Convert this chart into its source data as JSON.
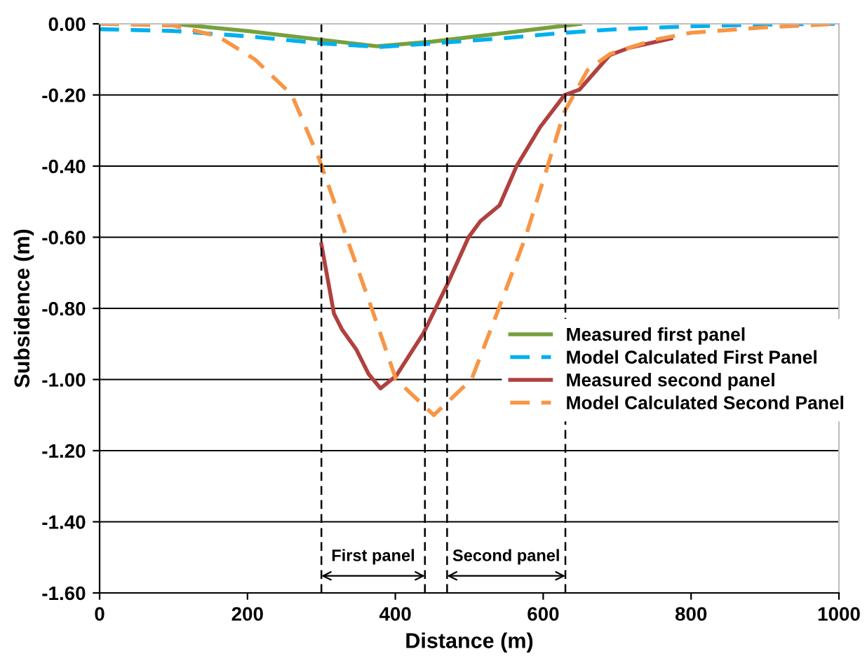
{
  "chart_data": {
    "type": "line",
    "xlabel": "Distance (m)",
    "ylabel": "Subsidence (m)",
    "xlim": [
      0,
      1000
    ],
    "xticks": [
      0,
      200,
      400,
      600,
      800,
      1000
    ],
    "ylim": [
      -1.6,
      0
    ],
    "yticks": [
      {
        "value": -1.6,
        "label": "-1.60"
      },
      {
        "value": -1.4,
        "label": "-1.40"
      },
      {
        "value": -1.2,
        "label": "-1.20"
      },
      {
        "value": -1.0,
        "label": "-1.00"
      },
      {
        "value": -0.8,
        "label": "-0.80"
      },
      {
        "value": -0.6,
        "label": "-0.60"
      },
      {
        "value": -0.4,
        "label": "-0.40"
      },
      {
        "value": -0.2,
        "label": "-0.20"
      },
      {
        "value": 0,
        "label": "0.00"
      }
    ],
    "grid": "y",
    "legend": "bottom right",
    "marker": "none",
    "series": [
      {
        "name": "Measured first panel",
        "color": "#77a03c",
        "line_style": "solid",
        "x": [
          100,
          200,
          300,
          375,
          450,
          550,
          650
        ],
        "values": [
          0,
          -0.02,
          -0.045,
          -0.063,
          -0.05,
          -0.025,
          0
        ]
      },
      {
        "name": "Model Calculated First Panel",
        "color": "#00b0f0",
        "line_style": "dashed",
        "x": [
          0,
          100,
          200,
          300,
          380,
          450,
          550,
          630,
          700,
          800,
          900,
          1000
        ],
        "values": [
          -0.015,
          -0.02,
          -0.035,
          -0.055,
          -0.065,
          -0.055,
          -0.04,
          -0.025,
          -0.015,
          -0.007,
          -0.002,
          0
        ]
      },
      {
        "name": "Measured second panel",
        "color": "#b0413e",
        "line_style": "solid",
        "x": [
          300,
          317,
          328,
          347,
          364,
          380,
          401,
          438,
          472,
          499,
          515,
          541,
          564,
          596,
          629,
          649,
          690,
          717,
          773
        ],
        "values": [
          -0.62,
          -0.815,
          -0.86,
          -0.915,
          -0.985,
          -1.025,
          -0.99,
          -0.87,
          -0.725,
          -0.6,
          -0.555,
          -0.51,
          -0.4,
          -0.29,
          -0.2,
          -0.185,
          -0.088,
          -0.067,
          -0.041
        ]
      },
      {
        "name": "Model Calculated Second Panel",
        "color": "#f79646",
        "line_style": "dashed",
        "x": [
          0,
          100,
          160,
          210,
          260,
          297,
          334,
          368,
          401,
          452,
          503,
          540,
          576,
          606,
          628,
          660,
          690,
          750,
          800,
          900,
          1000
        ],
        "values": [
          0,
          -0.005,
          -0.035,
          -0.1,
          -0.2,
          -0.38,
          -0.6,
          -0.8,
          -1.0,
          -1.1,
          -1.0,
          -0.8,
          -0.6,
          -0.4,
          -0.25,
          -0.13,
          -0.085,
          -0.045,
          -0.025,
          -0.01,
          0
        ]
      }
    ],
    "ref_lines": [
      {
        "axis": "x",
        "value": 300,
        "color": "#000000",
        "line_style": "dashed"
      },
      {
        "axis": "x",
        "value": 440,
        "color": "#000000",
        "line_style": "dashed"
      },
      {
        "axis": "x",
        "value": 470,
        "color": "#000000",
        "line_style": "dashed"
      },
      {
        "axis": "x",
        "value": 630,
        "color": "#000000",
        "line_style": "dashed"
      }
    ],
    "annotations": [
      "First panel",
      "Second panel"
    ]
  }
}
